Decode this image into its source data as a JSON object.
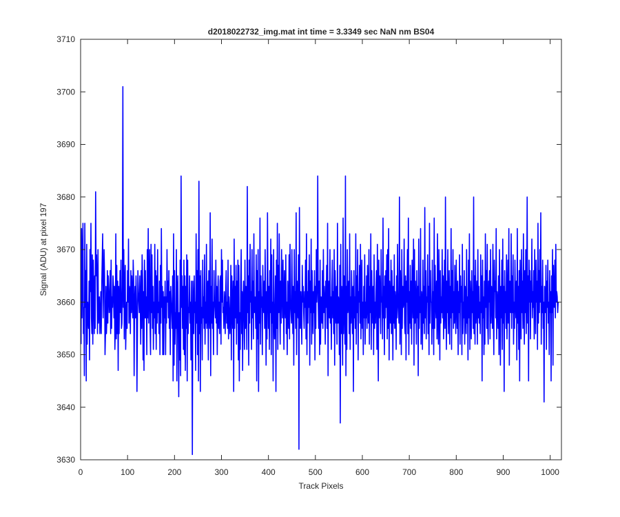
{
  "figure": {
    "background": "#ffffff"
  },
  "chart_data": {
    "type": "line",
    "title": "d2018022732_img.mat int time = 3.3349 sec  NaN nm BS04",
    "xlabel": "Track Pixels",
    "ylabel": "Signal (ADU) at pixel 197",
    "xlim": [
      0,
      1024
    ],
    "ylim": [
      3630,
      3710
    ],
    "xticks": [
      0,
      100,
      200,
      300,
      400,
      500,
      600,
      700,
      800,
      900,
      1000
    ],
    "yticks": [
      3630,
      3640,
      3650,
      3660,
      3670,
      3680,
      3690,
      3700,
      3710
    ],
    "grid": false,
    "legend": "none",
    "series": [
      {
        "color": "#0000ff",
        "x_start": 1,
        "x_step": 1,
        "values": [
          3652,
          3674,
          3657,
          3668,
          3675,
          3654,
          3659,
          3646,
          3675,
          3659,
          3666,
          3645,
          3671,
          3652,
          3660,
          3658,
          3655,
          3664,
          3649,
          3670,
          3662,
          3675,
          3657,
          3654,
          3669,
          3652,
          3668,
          3662,
          3654,
          3665,
          3655,
          3681,
          3665,
          3669,
          3664,
          3654,
          3670,
          3656,
          3659,
          3661,
          3654,
          3657,
          3662,
          3654,
          3663,
          3668,
          3673,
          3657,
          3663,
          3670,
          3665,
          3650,
          3654,
          3663,
          3654,
          3657,
          3666,
          3656,
          3665,
          3662,
          3658,
          3660,
          3666,
          3654,
          3668,
          3655,
          3661,
          3659,
          3665,
          3663,
          3657,
          3663,
          3651,
          3655,
          3673,
          3653,
          3667,
          3654,
          3664,
          3647,
          3663,
          3654,
          3660,
          3666,
          3658,
          3668,
          3655,
          3656,
          3663,
          3701,
          3659,
          3670,
          3653,
          3663,
          3667,
          3651,
          3656,
          3660,
          3655,
          3666,
          3660,
          3672,
          3656,
          3663,
          3662,
          3654,
          3666,
          3658,
          3665,
          3660,
          3657,
          3668,
          3664,
          3646,
          3660,
          3663,
          3657,
          3665,
          3660,
          3643,
          3654,
          3666,
          3662,
          3660,
          3658,
          3665,
          3660,
          3652,
          3666,
          3655,
          3669,
          3664,
          3649,
          3662,
          3647,
          3668,
          3657,
          3666,
          3657,
          3661,
          3650,
          3670,
          3657,
          3674,
          3656,
          3662,
          3670,
          3655,
          3650,
          3671,
          3658,
          3669,
          3655,
          3663,
          3651,
          3660,
          3657,
          3671,
          3654,
          3666,
          3651,
          3665,
          3656,
          3670,
          3658,
          3660,
          3654,
          3664,
          3650,
          3667,
          3656,
          3674,
          3659,
          3663,
          3650,
          3662,
          3650,
          3661,
          3657,
          3664,
          3650,
          3661,
          3656,
          3670,
          3660,
          3664,
          3657,
          3666,
          3655,
          3662,
          3650,
          3663,
          3660,
          3658,
          3655,
          3665,
          3645,
          3673,
          3648,
          3666,
          3652,
          3658,
          3655,
          3670,
          3645,
          3661,
          3665,
          3655,
          3642,
          3658,
          3649,
          3668,
          3646,
          3684,
          3659,
          3665,
          3655,
          3663,
          3651,
          3668,
          3650,
          3665,
          3647,
          3663,
          3655,
          3669,
          3645,
          3668,
          3654,
          3659,
          3658,
          3665,
          3656,
          3660,
          3649,
          3664,
          3655,
          3631,
          3664,
          3659,
          3654,
          3665,
          3658,
          3660,
          3647,
          3673,
          3656,
          3666,
          3650,
          3670,
          3645,
          3683,
          3654,
          3665,
          3643,
          3666,
          3656,
          3659,
          3649,
          3668,
          3657,
          3661,
          3655,
          3669,
          3652,
          3660,
          3656,
          3671,
          3655,
          3662,
          3664,
          3649,
          3666,
          3660,
          3655,
          3677,
          3646,
          3663,
          3656,
          3672,
          3655,
          3660,
          3650,
          3666,
          3660,
          3659,
          3657,
          3668,
          3656,
          3663,
          3650,
          3661,
          3665,
          3655,
          3660,
          3654,
          3664,
          3665,
          3652,
          3670,
          3660,
          3668,
          3658,
          3659,
          3655,
          3662,
          3660,
          3654,
          3662,
          3666,
          3656,
          3660,
          3655,
          3668,
          3653,
          3661,
          3658,
          3654,
          3658,
          3667,
          3649,
          3665,
          3659,
          3655,
          3664,
          3643,
          3672,
          3655,
          3663,
          3657,
          3667,
          3652,
          3664,
          3656,
          3668,
          3649,
          3667,
          3645,
          3658,
          3651,
          3664,
          3670,
          3654,
          3662,
          3647,
          3660,
          3664,
          3657,
          3651,
          3668,
          3655,
          3663,
          3660,
          3651,
          3682,
          3658,
          3665,
          3648,
          3668,
          3656,
          3671,
          3660,
          3662,
          3651,
          3670,
          3657,
          3664,
          3653,
          3673,
          3658,
          3661,
          3660,
          3655,
          3669,
          3645,
          3666,
          3653,
          3670,
          3643,
          3662,
          3656,
          3676,
          3652,
          3665,
          3659,
          3661,
          3650,
          3667,
          3660,
          3658,
          3664,
          3655,
          3670,
          3660,
          3648,
          3662,
          3653,
          3677,
          3662,
          3655,
          3663,
          3651,
          3666,
          3658,
          3672,
          3650,
          3669,
          3656,
          3660,
          3645,
          3670,
          3658,
          3653,
          3658,
          3665,
          3643,
          3668,
          3655,
          3675,
          3651,
          3667,
          3658,
          3673,
          3660,
          3652,
          3664,
          3656,
          3670,
          3662,
          3657,
          3668,
          3659,
          3651,
          3666,
          3661,
          3657,
          3669,
          3654,
          3660,
          3650,
          3664,
          3659,
          3655,
          3669,
          3653,
          3671,
          3660,
          3658,
          3656,
          3670,
          3660,
          3654,
          3663,
          3648,
          3670,
          3658,
          3662,
          3655,
          3677,
          3650,
          3664,
          3660,
          3657,
          3669,
          3632,
          3678,
          3660,
          3655,
          3662,
          3658,
          3652,
          3667,
          3660,
          3663,
          3658,
          3655,
          3662,
          3659,
          3668,
          3653,
          3673,
          3650,
          3662,
          3656,
          3666,
          3659,
          3669,
          3648,
          3664,
          3658,
          3672,
          3652,
          3666,
          3660,
          3654,
          3662,
          3658,
          3666,
          3649,
          3663,
          3655,
          3670,
          3660,
          3663,
          3684,
          3660,
          3655,
          3664,
          3650,
          3668,
          3652,
          3661,
          3660,
          3656,
          3666,
          3655,
          3670,
          3658,
          3663,
          3660,
          3652,
          3664,
          3659,
          3667,
          3655,
          3675,
          3646,
          3664,
          3659,
          3657,
          3670,
          3656,
          3661,
          3651,
          3663,
          3668,
          3657,
          3662,
          3654,
          3670,
          3648,
          3666,
          3660,
          3656,
          3663,
          3652,
          3675,
          3656,
          3661,
          3660,
          3650,
          3667,
          3637,
          3671,
          3654,
          3663,
          3658,
          3648,
          3676,
          3654,
          3665,
          3660,
          3652,
          3684,
          3646,
          3663,
          3651,
          3670,
          3658,
          3660,
          3664,
          3654,
          3673,
          3651,
          3661,
          3656,
          3666,
          3660,
          3654,
          3663,
          3643,
          3666,
          3657,
          3661,
          3655,
          3673,
          3652,
          3665,
          3658,
          3670,
          3649,
          3662,
          3660,
          3667,
          3656,
          3671,
          3653,
          3662,
          3668,
          3655,
          3660,
          3650,
          3663,
          3657,
          3669,
          3652,
          3660,
          3657,
          3665,
          3655,
          3667,
          3660,
          3656,
          3670,
          3652,
          3663,
          3658,
          3673,
          3651,
          3666,
          3660,
          3656,
          3663,
          3650,
          3669,
          3655,
          3660,
          3656,
          3662,
          3666,
          3651,
          3671,
          3658,
          3645,
          3668,
          3657,
          3665,
          3660,
          3654,
          3670,
          3660,
          3661,
          3653,
          3676,
          3657,
          3663,
          3650,
          3665,
          3657,
          3666,
          3659,
          3669,
          3653,
          3670,
          3655,
          3674,
          3649,
          3664,
          3660,
          3656,
          3668,
          3654,
          3666,
          3661,
          3649,
          3663,
          3656,
          3669,
          3655,
          3662,
          3660,
          3651,
          3665,
          3657,
          3671,
          3660,
          3658,
          3656,
          3680,
          3652,
          3666,
          3661,
          3650,
          3670,
          3655,
          3663,
          3659,
          3660,
          3672,
          3656,
          3654,
          3665,
          3649,
          3664,
          3660,
          3670,
          3654,
          3676,
          3650,
          3662,
          3656,
          3667,
          3655,
          3664,
          3652,
          3668,
          3661,
          3657,
          3672,
          3648,
          3670,
          3656,
          3664,
          3660,
          3652,
          3666,
          3657,
          3663,
          3646,
          3672,
          3655,
          3661,
          3658,
          3674,
          3652,
          3662,
          3660,
          3651,
          3668,
          3656,
          3663,
          3654,
          3678,
          3657,
          3666,
          3653,
          3661,
          3660,
          3669,
          3654,
          3663,
          3650,
          3675,
          3656,
          3666,
          3660,
          3660,
          3652,
          3668,
          3655,
          3662,
          3650,
          3676,
          3655,
          3667,
          3660,
          3657,
          3664,
          3653,
          3673,
          3658,
          3652,
          3670,
          3662,
          3649,
          3666,
          3656,
          3661,
          3658,
          3670,
          3657,
          3665,
          3653,
          3660,
          3668,
          3655,
          3680,
          3660,
          3651,
          3664,
          3658,
          3670,
          3654,
          3660,
          3666,
          3652,
          3663,
          3657,
          3674,
          3651,
          3666,
          3658,
          3670,
          3655,
          3662,
          3656,
          3667,
          3659,
          3654,
          3668,
          3660,
          3655,
          3664,
          3650,
          3662,
          3658,
          3669,
          3652,
          3665,
          3660,
          3663,
          3650,
          3671,
          3654,
          3660,
          3657,
          3666,
          3652,
          3663,
          3660,
          3654,
          3670,
          3656,
          3661,
          3649,
          3668,
          3657,
          3673,
          3651,
          3664,
          3660,
          3653,
          3666,
          3658,
          3662,
          3655,
          3680,
          3654,
          3665,
          3652,
          3668,
          3656,
          3660,
          3664,
          3652,
          3670,
          3657,
          3663,
          3656,
          3660,
          3654,
          3669,
          3658,
          3665,
          3645,
          3668,
          3657,
          3661,
          3650,
          3664,
          3652,
          3673,
          3659,
          3666,
          3655,
          3671,
          3656,
          3652,
          3664,
          3660,
          3666,
          3653,
          3670,
          3656,
          3663,
          3660,
          3655,
          3671,
          3658,
          3650,
          3668,
          3662,
          3664,
          3657,
          3674,
          3653,
          3662,
          3660,
          3655,
          3665,
          3650,
          3670,
          3660,
          3648,
          3663,
          3657,
          3668,
          3651,
          3672,
          3656,
          3663,
          3643,
          3666,
          3658,
          3662,
          3655,
          3669,
          3653,
          3660,
          3668,
          3656,
          3674,
          3648,
          3664,
          3660,
          3658,
          3673,
          3655,
          3665,
          3658,
          3669,
          3652,
          3660,
          3655,
          3668,
          3660,
          3657,
          3664,
          3649,
          3674,
          3656,
          3663,
          3651,
          3666,
          3645,
          3668,
          3661,
          3653,
          3670,
          3658,
          3664,
          3655,
          3673,
          3660,
          3652,
          3666,
          3658,
          3670,
          3654,
          3662,
          3680,
          3656,
          3665,
          3645,
          3668,
          3660,
          3666,
          3653,
          3664,
          3660,
          3672,
          3657,
          3662,
          3659,
          3666,
          3653,
          3670,
          3661,
          3654,
          3668,
          3660,
          3664,
          3651,
          3675,
          3656,
          3666,
          3658,
          3670,
          3660,
          3677,
          3652,
          3663,
          3658,
          3668,
          3655,
          3660,
          3641,
          3663,
          3660,
          3658,
          3667,
          3651,
          3664,
          3659,
          3668,
          3656,
          3660,
          3650,
          3666,
          3658,
          3662,
          3645,
          3665,
          3658,
          3670,
          3648,
          3667,
          3660,
          3659,
          3668,
          3657,
          3671,
          3660,
          3662,
          3661,
          3658,
          3660
        ]
      }
    ]
  }
}
